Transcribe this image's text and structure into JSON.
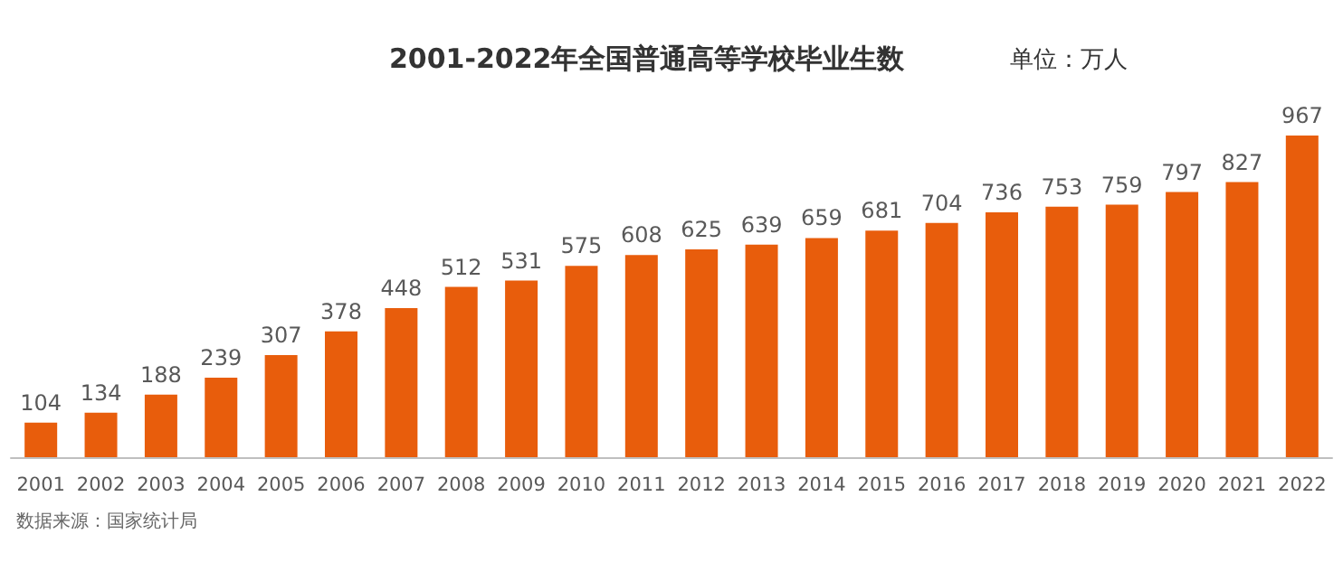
{
  "chart_data": {
    "type": "bar",
    "title": "2001-2022年全国普通高等学校毕业生数",
    "subtitle": "单位：万人",
    "categories": [
      "2001",
      "2002",
      "2003",
      "2004",
      "2005",
      "2006",
      "2007",
      "2008",
      "2009",
      "2010",
      "2011",
      "2012",
      "2013",
      "2014",
      "2015",
      "2016",
      "2017",
      "2018",
      "2019",
      "2020",
      "2021",
      "2022"
    ],
    "values": [
      104,
      134,
      188,
      239,
      307,
      378,
      448,
      512,
      531,
      575,
      608,
      625,
      639,
      659,
      681,
      704,
      736,
      753,
      759,
      797,
      827,
      967
    ],
    "color": "#e85d0c",
    "data_labels": true,
    "grid": false,
    "annotations": [
      "数据来源：国家统计局"
    ]
  }
}
